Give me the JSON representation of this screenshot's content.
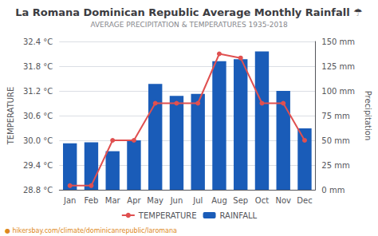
{
  "chart_data": {
    "type": "bar",
    "title": "La Romana Dominican Republic Average Monthly Rainfall ☂",
    "subtitle": "AVERAGE PRECIPITATION & TEMPERATURES 1935-2018",
    "ylabel": "TEMPERATURE",
    "y2label": "Precipitation",
    "annotation": "● hikersbay.com/climate/dominicanrepublic/laromana",
    "categories": [
      "Jan",
      "Feb",
      "Mar",
      "Apr",
      "May",
      "Jun",
      "Jul",
      "Aug",
      "Sep",
      "Oct",
      "Nov",
      "Dec"
    ],
    "series": [
      {
        "name": "TEMPERATURE",
        "type": "line",
        "color": "#e05050",
        "marker": "circle",
        "values": [
          28.9,
          28.9,
          30.0,
          30.0,
          30.9,
          30.9,
          30.9,
          32.1,
          32.0,
          30.9,
          30.9,
          30.0
        ]
      },
      {
        "name": "RAINFALL",
        "type": "bar",
        "axis": "y2",
        "color": "#1a5cb8",
        "values": [
          47,
          48,
          39,
          50,
          107,
          95,
          97,
          130,
          132,
          140,
          100,
          62
        ]
      }
    ],
    "ylim": [
      28.8,
      32.4
    ],
    "yticks": [
      {
        "value": 28.8,
        "label": "28.8 °C"
      },
      {
        "value": 29.4,
        "label": "29.4 °C"
      },
      {
        "value": 30.0,
        "label": "30.0 °C"
      },
      {
        "value": 30.6,
        "label": "30.6 °C"
      },
      {
        "value": 31.2,
        "label": "31.2 °C"
      },
      {
        "value": 31.8,
        "label": "31.8 °C"
      },
      {
        "value": 32.4,
        "label": "32.4 °C"
      }
    ],
    "y2lim": [
      0,
      150
    ],
    "y2ticks": [
      {
        "value": 0,
        "label": "0 mm"
      },
      {
        "value": 25,
        "label": "25 mm"
      },
      {
        "value": 50,
        "label": "50 mm"
      },
      {
        "value": 75,
        "label": "75 mm"
      },
      {
        "value": 100,
        "label": "100 mm"
      },
      {
        "value": 125,
        "label": "125 mm"
      },
      {
        "value": 150,
        "label": "150 mm"
      }
    ],
    "grid": true,
    "legend": "bottom"
  }
}
